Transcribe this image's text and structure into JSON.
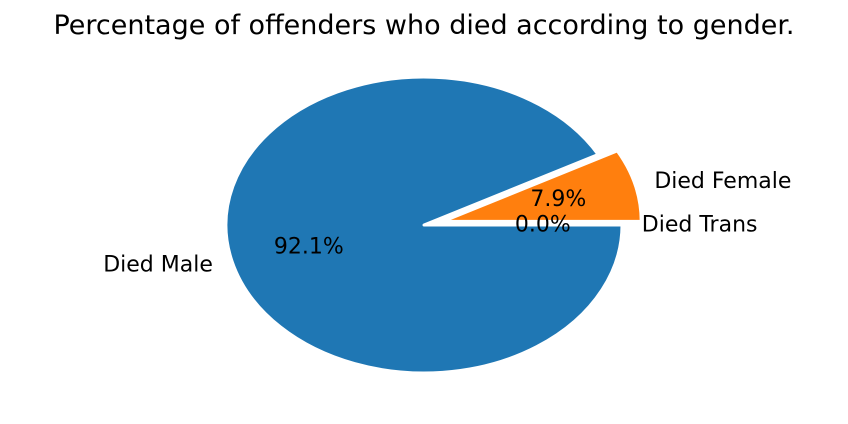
{
  "chart_data": {
    "type": "pie",
    "title": "Percentage of offenders who died according to gender.",
    "slices": [
      {
        "label": "Died Trans",
        "value": 0.0,
        "pct_label": "0.0%",
        "color": "#2ca02c",
        "explode": 0.0
      },
      {
        "label": "Died Female",
        "value": 7.9,
        "pct_label": "7.9%",
        "color": "#ff7f0e",
        "explode": 0.1
      },
      {
        "label": "Died Male",
        "value": 92.1,
        "pct_label": "92.1%",
        "color": "#1f77b4",
        "explode": 0.0
      }
    ],
    "start_angle_deg": 0,
    "direction": "counterclockwise",
    "wedge_edge_color": "#ffffff"
  }
}
